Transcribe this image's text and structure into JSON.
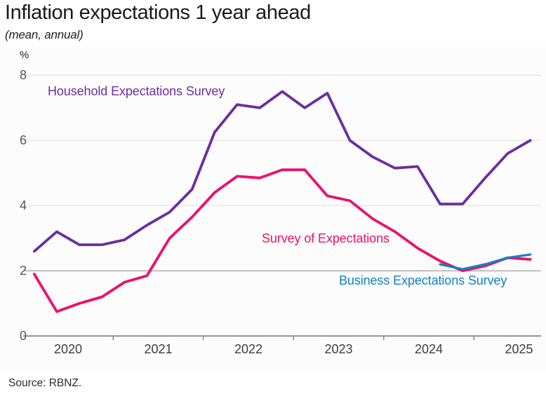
{
  "header": {
    "title": "Inflation expectations 1 year ahead",
    "subtitle": "(mean, annual)"
  },
  "axis": {
    "unit_label": "%"
  },
  "footer": {
    "source": "Source: RBNZ."
  },
  "colors": {
    "household": "#6C2EA0",
    "survey_of_expectations": "#ED1168",
    "business": "#1180C4",
    "gridline_light": "#e7e7e7",
    "gridline_target": "#b2b2b2",
    "axis_line": "#8f8f8f"
  },
  "chart_data": {
    "type": "line",
    "title": "Inflation expectations 1 year ahead",
    "subtitle": "(mean, annual)",
    "ylabel": "%",
    "ylim": [
      0,
      8
    ],
    "yticks": [
      0,
      2,
      4,
      6,
      8
    ],
    "emphasized_gridline": 2,
    "x_year_labels": [
      2020,
      2021,
      2022,
      2023,
      2024,
      2025
    ],
    "grid": "horizontal",
    "legend_position": "inline-labels",
    "series": [
      {
        "name": "Household Expectations Survey",
        "color": "#6C2EA0",
        "quarters": [
          "2020Q1",
          "2020Q2",
          "2020Q3",
          "2020Q4",
          "2021Q1",
          "2021Q2",
          "2021Q3",
          "2021Q4",
          "2022Q1",
          "2022Q2",
          "2022Q3",
          "2022Q4",
          "2023Q1",
          "2023Q2",
          "2023Q3",
          "2023Q4",
          "2024Q1",
          "2024Q2",
          "2024Q3",
          "2024Q4",
          "2025Q1",
          "2025Q2",
          "2025Q3"
        ],
        "values": [
          2.6,
          3.2,
          2.8,
          2.8,
          2.95,
          3.4,
          3.8,
          4.5,
          6.25,
          7.1,
          7.0,
          7.5,
          7.0,
          7.45,
          6.0,
          5.5,
          5.15,
          5.2,
          4.05,
          4.05,
          4.85,
          5.6,
          6.0
        ]
      },
      {
        "name": "Survey of Expectations",
        "color": "#ED1168",
        "quarters": [
          "2020Q1",
          "2020Q2",
          "2020Q3",
          "2020Q4",
          "2021Q1",
          "2021Q2",
          "2021Q3",
          "2021Q4",
          "2022Q1",
          "2022Q2",
          "2022Q3",
          "2022Q4",
          "2023Q1",
          "2023Q2",
          "2023Q3",
          "2023Q4",
          "2024Q1",
          "2024Q2",
          "2024Q3",
          "2024Q4",
          "2025Q1",
          "2025Q2",
          "2025Q3"
        ],
        "values": [
          1.9,
          0.75,
          1.0,
          1.2,
          1.65,
          1.85,
          3.0,
          3.65,
          4.4,
          4.9,
          4.85,
          5.1,
          5.1,
          4.3,
          4.15,
          3.6,
          3.2,
          2.7,
          2.3,
          2.0,
          2.15,
          2.4,
          2.35
        ]
      },
      {
        "name": "Business Expectations Survey",
        "color": "#1180C4",
        "quarters": [
          "2024Q3",
          "2024Q4",
          "2025Q1",
          "2025Q2",
          "2025Q3"
        ],
        "values": [
          2.2,
          2.05,
          2.2,
          2.4,
          2.5
        ]
      }
    ]
  }
}
